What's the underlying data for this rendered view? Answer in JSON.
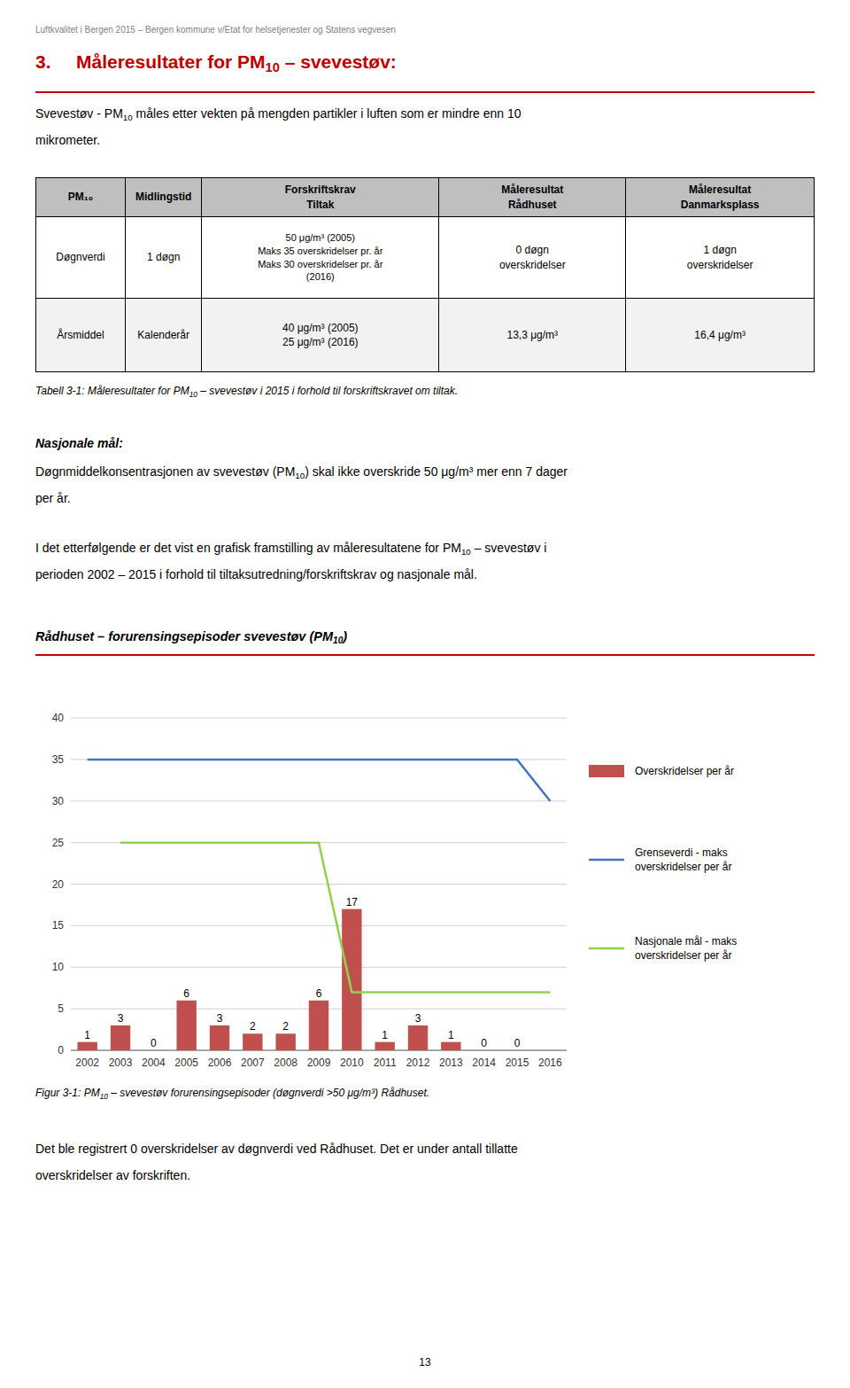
{
  "page": {
    "header": "Luftkvalitet i Bergen 2015 – Bergen kommune v/Etat for helsetjenester og Statens vegvesen",
    "section_number": "3.",
    "section_title": [
      "Måleresultater for PM",
      "10",
      " – svevestøv:"
    ],
    "intro": [
      [
        "Svevestøv - PM",
        "10",
        " måles etter vekten på mengden partikler i luften som er mindre enn 10"
      ],
      [
        "mikrometer."
      ]
    ],
    "table": {
      "header": [
        "PM₁₀",
        "Midlingstid",
        "Forskriftskrav\nTiltak",
        "Måleresultat\nRådhuset",
        "Måleresultat\nDanmarksplass"
      ],
      "rows": [
        [
          "Døgnverdi",
          "1 døgn",
          "50 μg/m³ (2005)\nMaks 35 overskridelser pr. år\nMaks 30 overskridelser pr. år\n(2016)",
          "0 døgn\noverskridelser",
          "1 døgn\noverskridelser"
        ],
        [
          "Årsmiddel",
          "Kalenderår",
          "40 μg/m³ (2005)\n25 μg/m³ (2016)",
          "13,3 μg/m³",
          "16,4 μg/m³"
        ]
      ]
    },
    "table_caption": [
      "Tabell 3-1: Måleresultater for PM",
      "10",
      " – svevestøv i 2015 i forhold til forskriftskravet om tiltak."
    ],
    "national_heading": "Nasjonale mål:",
    "national_text": [
      [
        "Døgnmiddelkonsentrasjonen av svevestøv (PM",
        "10",
        ") skal ikke overskride 50 μg/m³ mer enn 7 dager"
      ],
      [
        "per år."
      ]
    ],
    "period_text": [
      [
        "I det etterfølgende er det vist en grafisk framstilling av måleresultatene for PM",
        "10",
        " – svevestøv i"
      ],
      [
        "perioden 2002 – 2015 i forhold til tiltaksutredning/forskriftskrav og nasjonale mål."
      ]
    ],
    "chart_heading": [
      "Rådhuset – forurensingsepisoder svevestøv (PM",
      "10",
      ")"
    ],
    "figure_caption": [
      "Figur 3-1: PM",
      "10",
      " – svevestøv forurensingsepisoder (døgnverdi >50 μg/m³) Rådhuset."
    ],
    "conclusion": [
      [
        "Det ble registrert 0 overskridelser av døgnverdi ved Rådhuset. Det er under antall tillatte"
      ],
      [
        "overskridelser av forskriften."
      ]
    ],
    "page_number": "13",
    "colors": {
      "red": "#C00000",
      "header": "#7F7F7F",
      "background": "#FFFFFF",
      "table_header": "#BFBFBF",
      "row1": "#FFFFFF",
      "row2": "#F2F2F2",
      "border": "#000000"
    }
  },
  "chart_data": {
    "type": "bar",
    "categories": [
      "2002",
      "2003",
      "2004",
      "2005",
      "2006",
      "2007",
      "2008",
      "2009",
      "2010",
      "2011",
      "2012",
      "2013",
      "2014",
      "2015",
      "2016"
    ],
    "series": [
      {
        "name": "Overskridelser per år",
        "type": "bar",
        "color": "#C0504D",
        "values": [
          1,
          3,
          0,
          6,
          3,
          2,
          2,
          6,
          17,
          1,
          3,
          1,
          0,
          0,
          null
        ]
      },
      {
        "name": "Grenseverdi - maks\noverskridelser per år",
        "type": "line",
        "color": "#4472C4",
        "values": [
          35,
          35,
          35,
          35,
          35,
          35,
          35,
          35,
          35,
          35,
          35,
          35,
          35,
          35,
          30
        ]
      },
      {
        "name": "Nasjonale mål - maks\noverskridelser per år",
        "type": "line",
        "color": "#92D050",
        "values": [
          null,
          25,
          25,
          25,
          25,
          25,
          25,
          25,
          7,
          7,
          7,
          7,
          7,
          7,
          7
        ]
      }
    ],
    "ylim": [
      0,
      40
    ],
    "yticks": [
      0,
      5,
      10,
      15,
      20,
      25,
      30,
      35,
      40
    ],
    "grid": true,
    "data_labels": true,
    "legend": "right"
  }
}
